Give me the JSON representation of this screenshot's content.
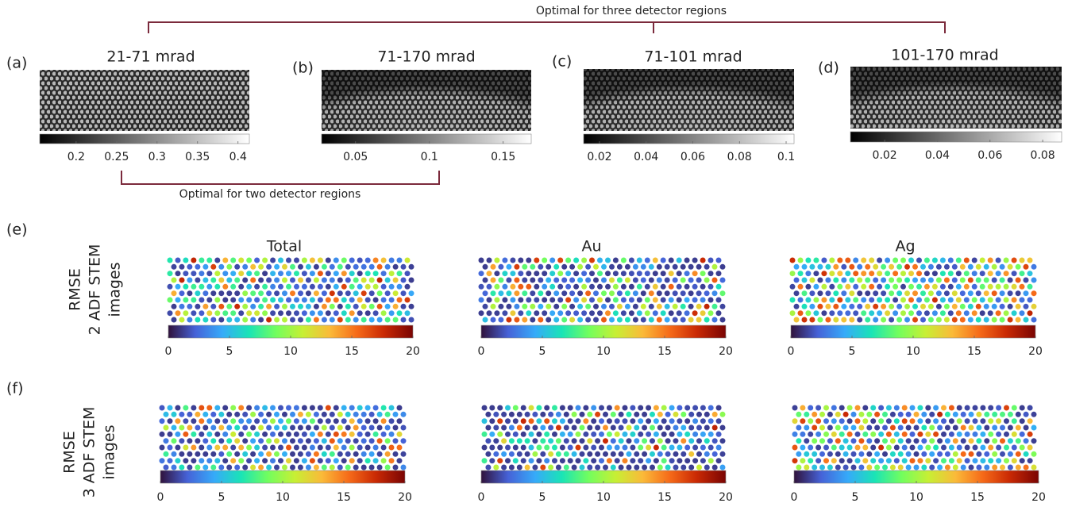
{
  "header": {
    "three_regions": "Optimal for three detector regions",
    "two_regions": "Optimal for two detector regions"
  },
  "top_panels": [
    {
      "label": "(a)",
      "title": "21-71 mrad",
      "colorbar": {
        "lim": [
          0.155,
          0.414
        ],
        "ticks": [
          0.2,
          0.25,
          0.3,
          0.35,
          0.4
        ]
      }
    },
    {
      "label": "(b)",
      "title": "71-170 mrad",
      "colorbar": {
        "lim": [
          0.027,
          0.169
        ],
        "ticks": [
          0.05,
          0.1,
          0.15
        ]
      }
    },
    {
      "label": "(c)",
      "title": "71-101 mrad",
      "colorbar": {
        "lim": [
          0.0132,
          0.1034
        ],
        "ticks": [
          0.02,
          0.04,
          0.06,
          0.08,
          0.1
        ]
      }
    },
    {
      "label": "(d)",
      "title": "101-170 mrad",
      "colorbar": {
        "lim": [
          0.007,
          0.0872
        ],
        "ticks": [
          0.02,
          0.04,
          0.06,
          0.08
        ]
      }
    }
  ],
  "rmse_rows": [
    {
      "label": "(e)",
      "row_title": [
        "RMSE",
        "2 ADF STEM",
        "images"
      ],
      "panels": [
        {
          "title": "Total",
          "colorbar": {
            "lim": [
              0,
              20
            ],
            "ticks": [
              0,
              5,
              10,
              15,
              20
            ]
          }
        },
        {
          "title": "Au",
          "colorbar": {
            "lim": [
              0,
              20
            ],
            "ticks": [
              0,
              5,
              10,
              15,
              20
            ]
          }
        },
        {
          "title": "Ag",
          "colorbar": {
            "lim": [
              0,
              20
            ],
            "ticks": [
              0,
              5,
              10,
              15,
              20
            ]
          }
        }
      ]
    },
    {
      "label": "(f)",
      "row_title": [
        "RMSE",
        "3 ADF STEM",
        "images"
      ],
      "panels": [
        {
          "colorbar": {
            "lim": [
              0,
              20
            ],
            "ticks": [
              0,
              5,
              10,
              15,
              20
            ]
          }
        },
        {
          "colorbar": {
            "lim": [
              0,
              20
            ],
            "ticks": [
              0,
              5,
              10,
              15,
              20
            ]
          }
        },
        {
          "colorbar": {
            "lim": [
              0,
              20
            ],
            "ticks": [
              0,
              5,
              10,
              15,
              20
            ]
          }
        }
      ]
    }
  ]
}
